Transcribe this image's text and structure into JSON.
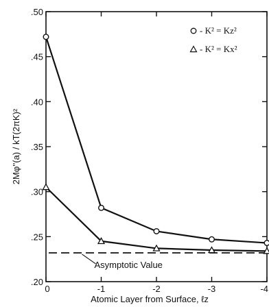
{
  "chart_data": {
    "type": "line",
    "xlabel": "Atomic Layer from Surface, ℓz",
    "ylabel": "2Mφ''(a) / kT(2πK)²",
    "x_tick_labels": [
      "0",
      "-1",
      "-2",
      "-3",
      "-4"
    ],
    "y_tick_labels": [
      ".20",
      ".25",
      ".30",
      ".35",
      ".40",
      ".45",
      ".50"
    ],
    "xlim": [
      0,
      -4
    ],
    "ylim": [
      0.2,
      0.5
    ],
    "grid": false,
    "legend_position": "top-right",
    "series": [
      {
        "name": "K² = Kz²",
        "legend_symbol": "○",
        "marker": "circle",
        "x": [
          0,
          -1,
          -2,
          -3,
          -4
        ],
        "y": [
          0.472,
          0.282,
          0.256,
          0.247,
          0.243
        ]
      },
      {
        "name": "K² = Kx²",
        "legend_symbol": "Δ",
        "marker": "triangle",
        "x": [
          0,
          -1,
          -2,
          -3,
          -4
        ],
        "y": [
          0.305,
          0.245,
          0.237,
          0.235,
          0.234
        ]
      }
    ],
    "reference_line": {
      "label": "Asymptotic Value",
      "y": 0.232,
      "style": "dashed"
    }
  }
}
